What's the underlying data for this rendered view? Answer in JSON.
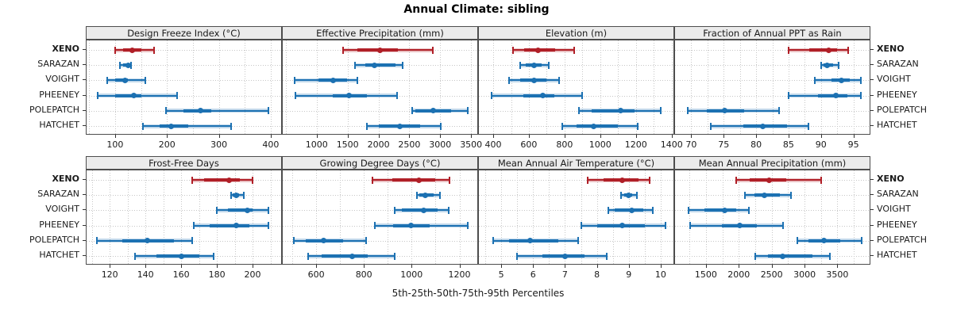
{
  "title": "Annual Climate: sibling",
  "caption": "5th-25th-50th-75th-95th Percentiles",
  "sites": [
    "XENO",
    "SARAZAN",
    "VOIGHT",
    "PHEENEY",
    "POLEPATCH",
    "HATCHET"
  ],
  "highlight_site": "XENO",
  "colors": {
    "highlight": "#b01f27",
    "normal": "#1c71b2",
    "grid": "#c6c6c6",
    "strip_bg": "#ebebeb",
    "border": "#4d4d4d",
    "halo_alpha": 0.28
  },
  "chart_data": {
    "type": "trellis-percentile-intervals",
    "percentiles": [
      5,
      25,
      50,
      75,
      95
    ],
    "legend_note": "XENO drawn in red, all other sites in blue",
    "panels": [
      {
        "row": 0,
        "col": 0,
        "title": "Design Freeze Index (°C)",
        "axis": {
          "min": 45,
          "max": 420,
          "grid_step": 50,
          "ticks": [
            100,
            200,
            300,
            400
          ]
        },
        "series": [
          {
            "site": "XENO",
            "values": [
              100,
              115,
              133,
              150,
              175
            ]
          },
          {
            "site": "SARAZAN",
            "values": [
              109,
              116,
              125,
              129,
              131
            ]
          },
          {
            "site": "VOIGHT",
            "values": [
              85,
              100,
              119,
              125,
              159
            ]
          },
          {
            "site": "PHEENEY",
            "values": [
              66,
              100,
              136,
              150,
              220
            ]
          },
          {
            "site": "POLEPATCH",
            "values": [
              198,
              231,
              264,
              286,
              396
            ]
          },
          {
            "site": "HATCHET",
            "values": [
              153,
              186,
              208,
              241,
              324
            ]
          }
        ]
      },
      {
        "row": 0,
        "col": 1,
        "title": "Effective Precipitation (mm)",
        "axis": {
          "min": 450,
          "max": 3600,
          "grid_step": 500,
          "ticks": [
            1000,
            1500,
            2000,
            2500,
            3000,
            3500
          ]
        },
        "series": [
          {
            "site": "XENO",
            "values": [
              1430,
              1660,
              2030,
              2320,
              2880
            ]
          },
          {
            "site": "SARAZAN",
            "values": [
              1620,
              1790,
              1940,
              2280,
              2390
            ]
          },
          {
            "site": "VOIGHT",
            "values": [
              640,
              1030,
              1270,
              1490,
              1655
            ]
          },
          {
            "site": "PHEENEY",
            "values": [
              660,
              1260,
              1525,
              1810,
              2295
            ]
          },
          {
            "site": "POLEPATCH",
            "values": [
              2540,
              2600,
              2890,
              3180,
              3440
            ]
          },
          {
            "site": "HATCHET",
            "values": [
              1810,
              2000,
              2350,
              2670,
              3010
            ]
          }
        ]
      },
      {
        "row": 0,
        "col": 2,
        "title": "Elevation (m)",
        "axis": {
          "min": 320,
          "max": 1410,
          "grid_step": 100,
          "ticks": [
            400,
            600,
            800,
            1000,
            1200,
            1400
          ]
        },
        "series": [
          {
            "site": "XENO",
            "values": [
              510,
              575,
              650,
              745,
              855
            ]
          },
          {
            "site": "SARAZAN",
            "values": [
              553,
              582,
              628,
              670,
              710
            ]
          },
          {
            "site": "VOIGHT",
            "values": [
              487,
              553,
              630,
              698,
              768
            ]
          },
          {
            "site": "PHEENEY",
            "values": [
              393,
              567,
              680,
              742,
              899
            ]
          },
          {
            "site": "POLEPATCH",
            "values": [
              880,
              950,
              1115,
              1190,
              1340
            ]
          },
          {
            "site": "HATCHET",
            "values": [
              785,
              865,
              965,
              1100,
              1210
            ]
          }
        ]
      },
      {
        "row": 0,
        "col": 3,
        "title": "Fraction of Annual PPT as Rain",
        "axis": {
          "min": 67.5,
          "max": 97.5,
          "grid_step": 2.5,
          "ticks": [
            70,
            75,
            80,
            85,
            90,
            95
          ]
        },
        "series": [
          {
            "site": "XENO",
            "values": [
              85,
              88.2,
              91.2,
              92.5,
              94.2
            ]
          },
          {
            "site": "SARAZAN",
            "values": [
              90,
              90.4,
              91,
              91.9,
              92.7
            ]
          },
          {
            "site": "VOIGHT",
            "values": [
              89,
              91.6,
              93.2,
              94.5,
              96.2
            ]
          },
          {
            "site": "PHEENEY",
            "values": [
              85,
              89.6,
              92.3,
              94.1,
              96.2
            ]
          },
          {
            "site": "POLEPATCH",
            "values": [
              69.5,
              72.4,
              75.1,
              78.1,
              83.6
            ]
          },
          {
            "site": "HATCHET",
            "values": [
              73,
              78,
              81,
              84.8,
              88.1
            ]
          }
        ]
      },
      {
        "row": 1,
        "col": 0,
        "title": "Frost-Free Days",
        "axis": {
          "min": 107,
          "max": 216,
          "grid_step": 10,
          "ticks": [
            120,
            140,
            160,
            180,
            200
          ]
        },
        "series": [
          {
            "site": "XENO",
            "values": [
              166,
              173,
              187,
              193,
              200
            ]
          },
          {
            "site": "SARAZAN",
            "values": [
              188,
              189,
              191,
              192.5,
              195
            ]
          },
          {
            "site": "VOIGHT",
            "values": [
              180,
              186,
              197,
              200,
              209
            ]
          },
          {
            "site": "PHEENEY",
            "values": [
              167,
              176,
              191,
              198,
              209
            ]
          },
          {
            "site": "POLEPATCH",
            "values": [
              113,
              127,
              141,
              156,
              166
            ]
          },
          {
            "site": "HATCHET",
            "values": [
              134,
              146,
              160,
              170,
              178
            ]
          }
        ]
      },
      {
        "row": 1,
        "col": 1,
        "title": "Growing Degree Days (°C)",
        "axis": {
          "min": 460,
          "max": 1275,
          "grid_step": 100,
          "ticks": [
            600,
            800,
            1000,
            1200
          ]
        },
        "series": [
          {
            "site": "XENO",
            "values": [
              835,
              920,
              1030,
              1100,
              1160
            ]
          },
          {
            "site": "SARAZAN",
            "values": [
              1022,
              1031,
              1058,
              1091,
              1119
            ]
          },
          {
            "site": "VOIGHT",
            "values": [
              930,
              959,
              1049,
              1108,
              1154
            ]
          },
          {
            "site": "PHEENEY",
            "values": [
              846,
              921,
              998,
              1075,
              1234
            ]
          },
          {
            "site": "POLEPATCH",
            "values": [
              505,
              558,
              630,
              712,
              809
            ]
          },
          {
            "site": "HATCHET",
            "values": [
              567,
              624,
              751,
              817,
              930
            ]
          }
        ]
      },
      {
        "row": 1,
        "col": 2,
        "title": "Mean Annual Air Temperature (°C)",
        "axis": {
          "min": 4.3,
          "max": 10.4,
          "grid_step": 0.5,
          "ticks": [
            5,
            6,
            7,
            8,
            9,
            10
          ]
        },
        "series": [
          {
            "site": "XENO",
            "values": [
              7.7,
              8.2,
              8.8,
              9.3,
              9.65
            ]
          },
          {
            "site": "SARAZAN",
            "values": [
              8.75,
              8.85,
              9.0,
              9.1,
              9.25
            ]
          },
          {
            "site": "VOIGHT",
            "values": [
              8.35,
              8.55,
              9.1,
              9.45,
              9.75
            ]
          },
          {
            "site": "PHEENEY",
            "values": [
              7.5,
              8.0,
              8.8,
              9.5,
              10.15
            ]
          },
          {
            "site": "POLEPATCH",
            "values": [
              4.75,
              5.25,
              5.9,
              6.8,
              7.4
            ]
          },
          {
            "site": "HATCHET",
            "values": [
              5.5,
              6.3,
              7.0,
              7.6,
              8.3
            ]
          }
        ]
      },
      {
        "row": 1,
        "col": 3,
        "title": "Mean Annual Precipitation (mm)",
        "axis": {
          "min": 1030,
          "max": 3990,
          "grid_step": 250,
          "ticks": [
            1500,
            2000,
            2500,
            3000,
            3500
          ]
        },
        "series": [
          {
            "site": "XENO",
            "values": [
              1960,
              2160,
              2460,
              2720,
              3250
            ]
          },
          {
            "site": "SARAZAN",
            "values": [
              2090,
              2240,
              2390,
              2620,
              2790
            ]
          },
          {
            "site": "VOIGHT",
            "values": [
              1230,
              1480,
              1790,
              1960,
              2150
            ]
          },
          {
            "site": "PHEENEY",
            "values": [
              1260,
              1740,
              2010,
              2280,
              2670
            ]
          },
          {
            "site": "POLEPATCH",
            "values": [
              2890,
              3060,
              3300,
              3540,
              3870
            ]
          },
          {
            "site": "HATCHET",
            "values": [
              2250,
              2440,
              2670,
              3120,
              3390
            ]
          }
        ]
      }
    ]
  }
}
